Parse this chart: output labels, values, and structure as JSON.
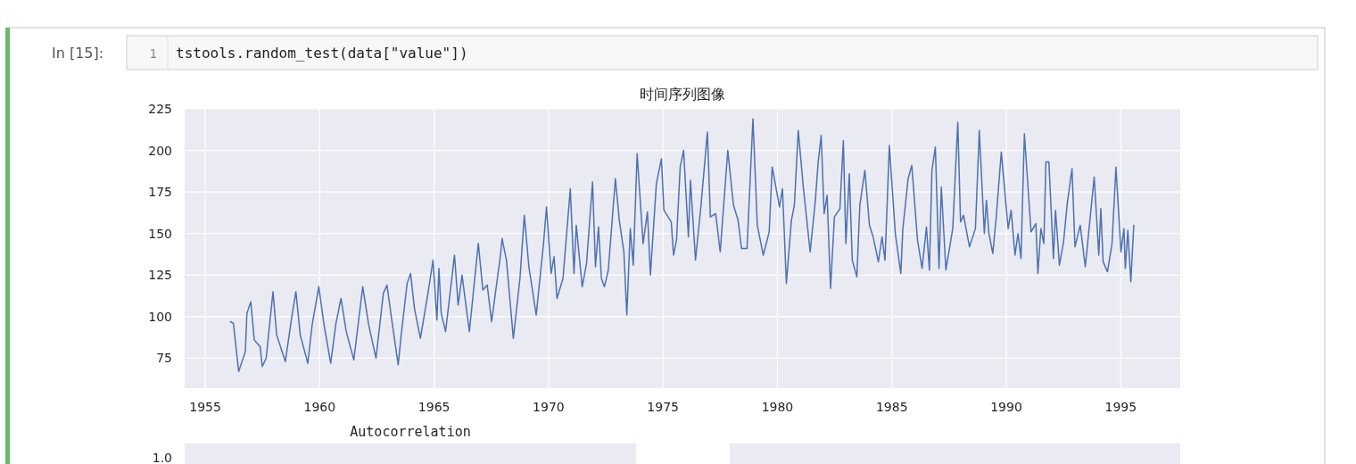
{
  "chart_data": [
    {
      "type": "line",
      "title": "时间序列图像",
      "x": [
        1956.1,
        1956.23,
        1956.46,
        1956.75,
        1956.82,
        1956.99,
        1957.14,
        1957.4,
        1957.49,
        1957.66,
        1957.96,
        1958.12,
        1958.5,
        1958.76,
        1958.96,
        1959.15,
        1959.48,
        1959.67,
        1959.96,
        1960.19,
        1960.48,
        1960.71,
        1960.93,
        1961.16,
        1961.49,
        1961.88,
        1962.14,
        1962.46,
        1962.78,
        1962.94,
        1963.17,
        1963.43,
        1963.56,
        1963.82,
        1963.97,
        1964.14,
        1964.4,
        1964.73,
        1964.95,
        1965.12,
        1965.21,
        1965.31,
        1965.5,
        1965.89,
        1966.05,
        1966.22,
        1966.54,
        1966.93,
        1967.13,
        1967.32,
        1967.51,
        1967.9,
        1967.97,
        1968.16,
        1968.46,
        1968.75,
        1968.94,
        1969.14,
        1969.46,
        1969.78,
        1969.91,
        1970.11,
        1970.24,
        1970.37,
        1970.63,
        1970.95,
        1971.11,
        1971.21,
        1971.47,
        1971.66,
        1971.92,
        1972.05,
        1972.18,
        1972.31,
        1972.44,
        1972.61,
        1972.92,
        1973.09,
        1973.29,
        1973.42,
        1973.57,
        1973.7,
        1973.87,
        1974.13,
        1974.32,
        1974.45,
        1974.71,
        1974.93,
        1975.04,
        1975.36,
        1975.46,
        1975.59,
        1975.75,
        1975.9,
        1976.11,
        1976.2,
        1976.42,
        1976.66,
        1976.94,
        1977.07,
        1977.3,
        1977.5,
        1977.83,
        1978.08,
        1978.28,
        1978.43,
        1978.67,
        1978.93,
        1979.12,
        1979.38,
        1979.64,
        1979.77,
        1980.09,
        1980.22,
        1980.39,
        1980.61,
        1980.74,
        1980.91,
        1981.13,
        1981.43,
        1981.65,
        1981.78,
        1981.91,
        1982.04,
        1982.17,
        1982.32,
        1982.49,
        1982.73,
        1982.88,
        1982.99,
        1983.14,
        1983.27,
        1983.47,
        1983.6,
        1983.82,
        1984.02,
        1984.18,
        1984.41,
        1984.57,
        1984.7,
        1984.89,
        1985.15,
        1985.39,
        1985.48,
        1985.71,
        1985.87,
        1986.12,
        1986.32,
        1986.51,
        1986.64,
        1986.75,
        1986.9,
        1987.06,
        1987.16,
        1987.36,
        1987.66,
        1987.88,
        1988.0,
        1988.13,
        1988.39,
        1988.65,
        1988.82,
        1989.04,
        1989.13,
        1989.24,
        1989.41,
        1989.56,
        1989.78,
        1990.08,
        1990.21,
        1990.38,
        1990.51,
        1990.64,
        1990.79,
        1991.08,
        1991.29,
        1991.38,
        1991.51,
        1991.64,
        1991.73,
        1991.86,
        1992.06,
        1992.15,
        1992.32,
        1992.5,
        1992.67,
        1992.87,
        1993.0,
        1993.23,
        1993.45,
        1993.84,
        1994.04,
        1994.13,
        1994.23,
        1994.42,
        1994.62,
        1994.79,
        1995.01,
        1995.14,
        1995.2,
        1995.31,
        1995.44,
        1995.57
      ],
      "series": [
        {
          "color": "#4c72b0",
          "values": [
            97,
            96,
            67,
            79,
            102,
            109,
            86,
            82,
            70,
            75,
            115,
            89,
            73,
            98,
            115,
            89,
            72,
            95,
            118,
            95,
            72,
            96,
            111,
            91,
            74,
            118,
            95,
            75,
            114,
            119,
            96,
            71,
            89,
            120,
            126,
            105,
            87,
            114,
            134,
            98,
            129,
            102,
            91,
            137,
            107,
            125,
            91,
            144,
            116,
            119,
            97,
            137,
            147,
            134,
            87,
            123,
            161,
            130,
            101,
            144,
            166,
            126,
            136,
            111,
            123,
            177,
            126,
            155,
            118,
            132,
            181,
            130,
            154,
            123,
            118,
            128,
            183,
            158,
            139,
            101,
            153,
            131,
            198,
            144,
            163,
            125,
            180,
            195,
            164,
            157,
            137,
            146,
            190,
            200,
            148,
            182,
            134,
            167,
            211,
            160,
            162,
            139,
            200,
            167,
            158,
            141,
            141,
            219,
            155,
            137,
            151,
            190,
            166,
            177,
            120,
            158,
            167,
            212,
            178,
            139,
            169,
            193,
            209,
            162,
            173,
            117,
            160,
            165,
            206,
            144,
            186,
            134,
            124,
            167,
            188,
            155,
            148,
            133,
            148,
            134,
            203,
            150,
            126,
            153,
            183,
            191,
            146,
            129,
            154,
            128,
            188,
            202,
            129,
            178,
            128,
            153,
            217,
            157,
            161,
            142,
            153,
            212,
            150,
            170,
            150,
            138,
            160,
            199,
            153,
            164,
            137,
            150,
            135,
            210,
            151,
            156,
            126,
            153,
            144,
            193,
            193,
            135,
            164,
            131,
            145,
            169,
            189,
            142,
            155,
            130,
            184,
            137,
            165,
            133,
            127,
            144,
            190,
            139,
            153,
            129,
            152,
            121,
            155
          ]
        }
      ],
      "xlim": [
        1954.1,
        1997.6
      ],
      "ylim": [
        57,
        225
      ],
      "xticks": [
        1955,
        1960,
        1965,
        1970,
        1975,
        1980,
        1985,
        1990,
        1995
      ],
      "yticks": [
        75,
        100,
        125,
        150,
        175,
        200,
        225
      ],
      "grid": true,
      "annotations": [
        "In [15]:",
        "1",
        "tstools.random_test(data[\"value\"])"
      ]
    },
    {
      "type": "other",
      "title": "Autocorrelation",
      "annotations": [
        "1.0"
      ]
    }
  ]
}
